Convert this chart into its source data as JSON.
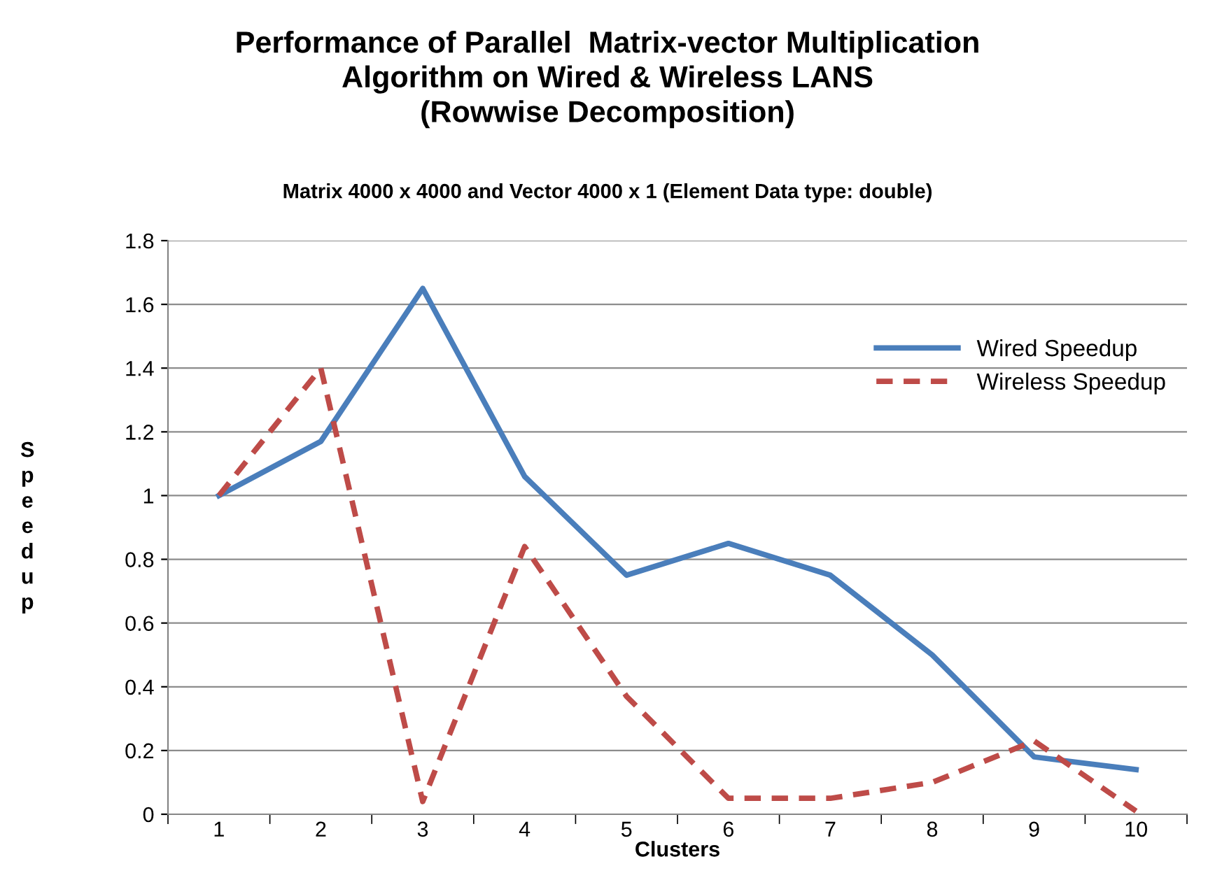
{
  "chart_data": {
    "type": "line",
    "title": "Performance of Parallel  Matrix-vector Multiplication\nAlgorithm on Wired & Wireless LANS\n(Rowwise Decomposition)",
    "subtitle": "Matrix 4000 x 4000 and Vector 4000 x 1 (Element Data type: double)",
    "xlabel": "Clusters",
    "ylabel": "Speedup",
    "categories": [
      "1",
      "2",
      "3",
      "4",
      "5",
      "6",
      "7",
      "8",
      "9",
      "10"
    ],
    "series": [
      {
        "name": "Wired Speedup",
        "color": "#4a7ebb",
        "line_style": "solid",
        "values": [
          1.0,
          1.17,
          1.65,
          1.06,
          0.75,
          0.85,
          0.75,
          0.5,
          0.18,
          0.14
        ]
      },
      {
        "name": "Wireless Speedup",
        "color": "#be4b48",
        "line_style": "dashed",
        "values": [
          1.0,
          1.4,
          0.04,
          0.84,
          0.37,
          0.05,
          0.05,
          0.1,
          0.23,
          0.01
        ]
      }
    ],
    "ylim": [
      0,
      1.8
    ],
    "yticks": [
      0,
      0.2,
      0.4,
      0.6,
      0.8,
      1,
      1.2,
      1.4,
      1.6,
      1.8
    ],
    "grid": "y",
    "legend": "right",
    "marker": "none"
  }
}
